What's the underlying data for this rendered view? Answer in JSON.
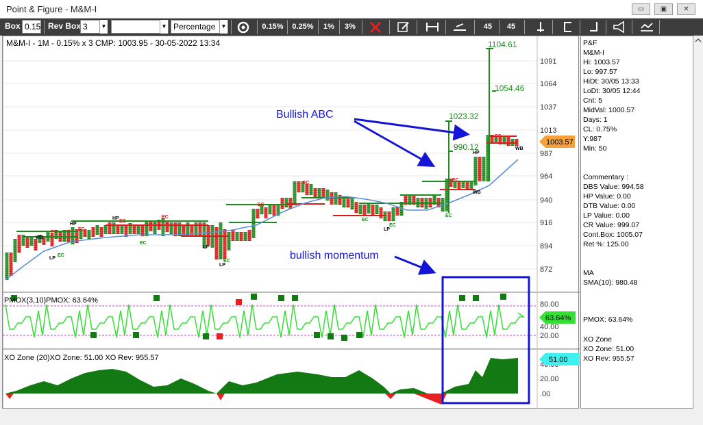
{
  "window": {
    "title": "Point & Figure - M&M-I",
    "minimize": "▭",
    "restore": "▣",
    "close": "✕"
  },
  "toolbar": {
    "box_label": "Box",
    "box_value": "0.15",
    "revbox_label": "Rev Box",
    "revbox_value": "3",
    "blank_select": "",
    "method_value": "Percentage",
    "pct1": "0.15%",
    "pct2": "0.25%",
    "pct3": "1%",
    "pct4": "3%",
    "deg1": "45",
    "deg2": "45"
  },
  "chart": {
    "header": "M&M-I - 1M - 0.15% x 3 CMP: 1003.95 - 30-05-2022 13:34",
    "price_ticks": [
      "1091",
      "1064",
      "1037",
      "1013",
      "987",
      "964",
      "940",
      "916",
      "894",
      "872"
    ],
    "cmp_badge": "1003.57",
    "annotations": {
      "bullish_abc": "Bullish ABC",
      "bullish_momentum": "bullish momentum",
      "t1": "1104.61",
      "t2": "1054.46",
      "t3": "1023.32",
      "t4": "990.12"
    },
    "markers": {
      "ec": "EC",
      "hp": "HP",
      "lp": "LP",
      "wb": "WB"
    },
    "pmox": {
      "header": "PMOX(3,10)PMOX: 63.64%",
      "ticks": [
        "80.00",
        "40.00",
        "20.00"
      ],
      "badge": "63.64%"
    },
    "xozone": {
      "header": "XO Zone (20)XO Zone: 51.00 XO Rev: 955.57",
      "ticks": [
        "40.00",
        "20.00",
        ".00"
      ],
      "badge": "51.00"
    }
  },
  "side_panel": {
    "lines": [
      "P&F",
      "M&M-I",
      "Hi: 1003.57",
      "Lo: 997.57",
      "HiDt: 30/05 13:33",
      "LoDt: 30/05 12:44",
      "Cnt: 5",
      "MidVal: 1000.57",
      "Days: 1",
      "CL: 0.75%",
      "Y:987",
      "Min: 50"
    ],
    "commentary": [
      "Commentary :",
      "DBS Value:  994.58",
      "HP Value: 0.00",
      "DTB Value: 0.00",
      "LP Value: 0.00",
      "CR Value: 999.07",
      "Cont.Box: 1005.07",
      "Ret %: 125.00"
    ],
    "ma": [
      "MA",
      "SMA(10): 980.48"
    ],
    "pmox": "PMOX: 63.64%",
    "xo": [
      "XO Zone",
      "XO Zone: 51.00",
      "XO Rev: 955.57"
    ]
  },
  "colors": {
    "up": "#1e8a1e",
    "down": "#d81c1c",
    "arrow": "#1515d8",
    "ma": "#5b8fd6",
    "pmox": "#33e033",
    "xo": "#137a13",
    "cmp": "#f7a13a",
    "cyan": "#3ef0f0"
  }
}
